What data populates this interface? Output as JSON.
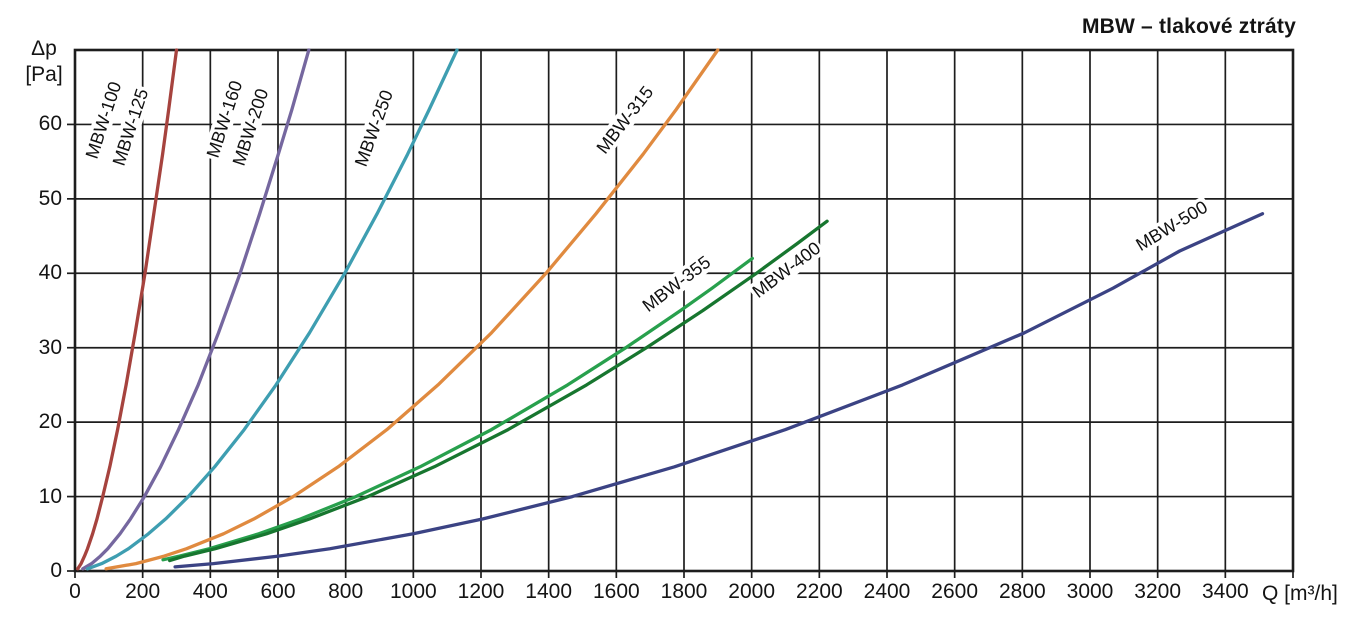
{
  "title": "MBW – tlakové ztráty",
  "axes": {
    "y_title_line1": "Δp",
    "y_title_line2": "[Pa]",
    "x_title": "Q [m³/h]",
    "x_ticks": [
      "0",
      "200",
      "400",
      "600",
      "800",
      "1000",
      "1200",
      "1400",
      "1600",
      "1800",
      "2000",
      "2200",
      "2400",
      "2600",
      "2800",
      "3000",
      "3200",
      "3400"
    ],
    "y_ticks": [
      "0",
      "10",
      "20",
      "30",
      "40",
      "50",
      "60"
    ]
  },
  "curve_labels": [
    {
      "text": "MBW-100"
    },
    {
      "text": "MBW-125"
    },
    {
      "text": "MBW-160"
    },
    {
      "text": "MBW-200"
    },
    {
      "text": "MBW-250"
    },
    {
      "text": "MBW-315"
    },
    {
      "text": "MBW-355"
    },
    {
      "text": "MBW-400"
    },
    {
      "text": "MBW-500"
    }
  ],
  "colors": {
    "grid": "#1d1d1d",
    "text": "#141414",
    "mbw_100_125": "#a6433e",
    "mbw_160_200": "#75679f",
    "mbw_250": "#3e9eb1",
    "mbw_315": "#e08a3f",
    "mbw_355": "#28a04d",
    "mbw_400": "#17762f",
    "mbw_500": "#3b4384"
  },
  "chart_data": {
    "type": "line",
    "title": "MBW – tlakové ztráty",
    "xlabel": "Q [m³/h]",
    "ylabel": "Δp [Pa]",
    "xlim": [
      0,
      3600
    ],
    "ylim": [
      0,
      70
    ],
    "x_tick_step": 200,
    "y_tick_step": 10,
    "x_labeled_max": 3400,
    "y_labeled_max": 60,
    "grid": true,
    "legend": "curve labels drawn along curves",
    "series": [
      {
        "name": "MBW-100/125",
        "color": "#a6433e",
        "points": [
          [
            8,
            0.3
          ],
          [
            18,
            1
          ],
          [
            28,
            2
          ],
          [
            37,
            3
          ],
          [
            52,
            5
          ],
          [
            65,
            7
          ],
          [
            82,
            10
          ],
          [
            103,
            14
          ],
          [
            126,
            19
          ],
          [
            151,
            25
          ],
          [
            178,
            32
          ],
          [
            207,
            40
          ],
          [
            233,
            48
          ],
          [
            259,
            56
          ],
          [
            277,
            62
          ],
          [
            300,
            70
          ]
        ]
      },
      {
        "name": "MBW-160/200",
        "color": "#75679f",
        "points": [
          [
            23,
            0.3
          ],
          [
            49,
            1
          ],
          [
            75,
            2
          ],
          [
            97,
            3
          ],
          [
            133,
            5
          ],
          [
            164,
            7
          ],
          [
            205,
            10
          ],
          [
            253,
            14
          ],
          [
            306,
            19
          ],
          [
            364,
            25
          ],
          [
            424,
            32
          ],
          [
            488,
            40
          ],
          [
            546,
            48
          ],
          [
            601,
            56
          ],
          [
            641,
            62
          ],
          [
            691,
            70
          ]
        ]
      },
      {
        "name": "MBW-250",
        "color": "#3e9eb1",
        "points": [
          [
            37,
            0.3
          ],
          [
            79,
            1
          ],
          [
            122,
            2
          ],
          [
            158,
            3
          ],
          [
            217,
            5
          ],
          [
            268,
            7
          ],
          [
            335,
            10
          ],
          [
            413,
            14
          ],
          [
            500,
            19
          ],
          [
            594,
            25
          ],
          [
            693,
            32
          ],
          [
            797,
            40
          ],
          [
            893,
            48
          ],
          [
            983,
            56
          ],
          [
            1047,
            62
          ],
          [
            1129,
            70
          ]
        ]
      },
      {
        "name": "MBW-315",
        "color": "#e08a3f",
        "points": [
          [
            92,
            0.3
          ],
          [
            180,
            1
          ],
          [
            264,
            2
          ],
          [
            330,
            3
          ],
          [
            439,
            5
          ],
          [
            529,
            7
          ],
          [
            645,
            10
          ],
          [
            778,
            14
          ],
          [
            922,
            19
          ],
          [
            1073,
            25
          ],
          [
            1231,
            32
          ],
          [
            1392,
            40
          ],
          [
            1540,
            48
          ],
          [
            1679,
            56
          ],
          [
            1777,
            62
          ],
          [
            1900,
            70
          ]
        ]
      },
      {
        "name": "MBW-355",
        "color": "#28a04d",
        "points": [
          [
            260,
            1.5
          ],
          [
            309,
            2
          ],
          [
            397,
            3
          ],
          [
            543,
            5
          ],
          [
            667,
            7
          ],
          [
            830,
            10
          ],
          [
            1020,
            14
          ],
          [
            1231,
            19
          ],
          [
            1456,
            25
          ],
          [
            1628,
            30
          ],
          [
            1790,
            35
          ],
          [
            1883,
            38
          ],
          [
            2002,
            42
          ]
        ]
      },
      {
        "name": "MBW-400",
        "color": "#17762f",
        "points": [
          [
            280,
            1.4
          ],
          [
            324,
            2
          ],
          [
            415,
            3
          ],
          [
            566,
            5
          ],
          [
            693,
            7
          ],
          [
            865,
            10
          ],
          [
            1062,
            14
          ],
          [
            1280,
            19
          ],
          [
            1512,
            25
          ],
          [
            1689,
            30
          ],
          [
            1856,
            35
          ],
          [
            2014,
            40
          ],
          [
            2135,
            44
          ],
          [
            2223,
            47
          ]
        ]
      },
      {
        "name": "MBW-500",
        "color": "#3b4384",
        "points": [
          [
            296,
            0.55
          ],
          [
            409,
            1
          ],
          [
            601,
            2
          ],
          [
            753,
            3
          ],
          [
            1000,
            5
          ],
          [
            1206,
            7
          ],
          [
            1470,
            10
          ],
          [
            1772,
            14
          ],
          [
            2100,
            19
          ],
          [
            2446,
            25
          ],
          [
            2806,
            32
          ],
          [
            3068,
            38
          ],
          [
            3265,
            43
          ],
          [
            3510,
            48
          ]
        ]
      }
    ]
  }
}
